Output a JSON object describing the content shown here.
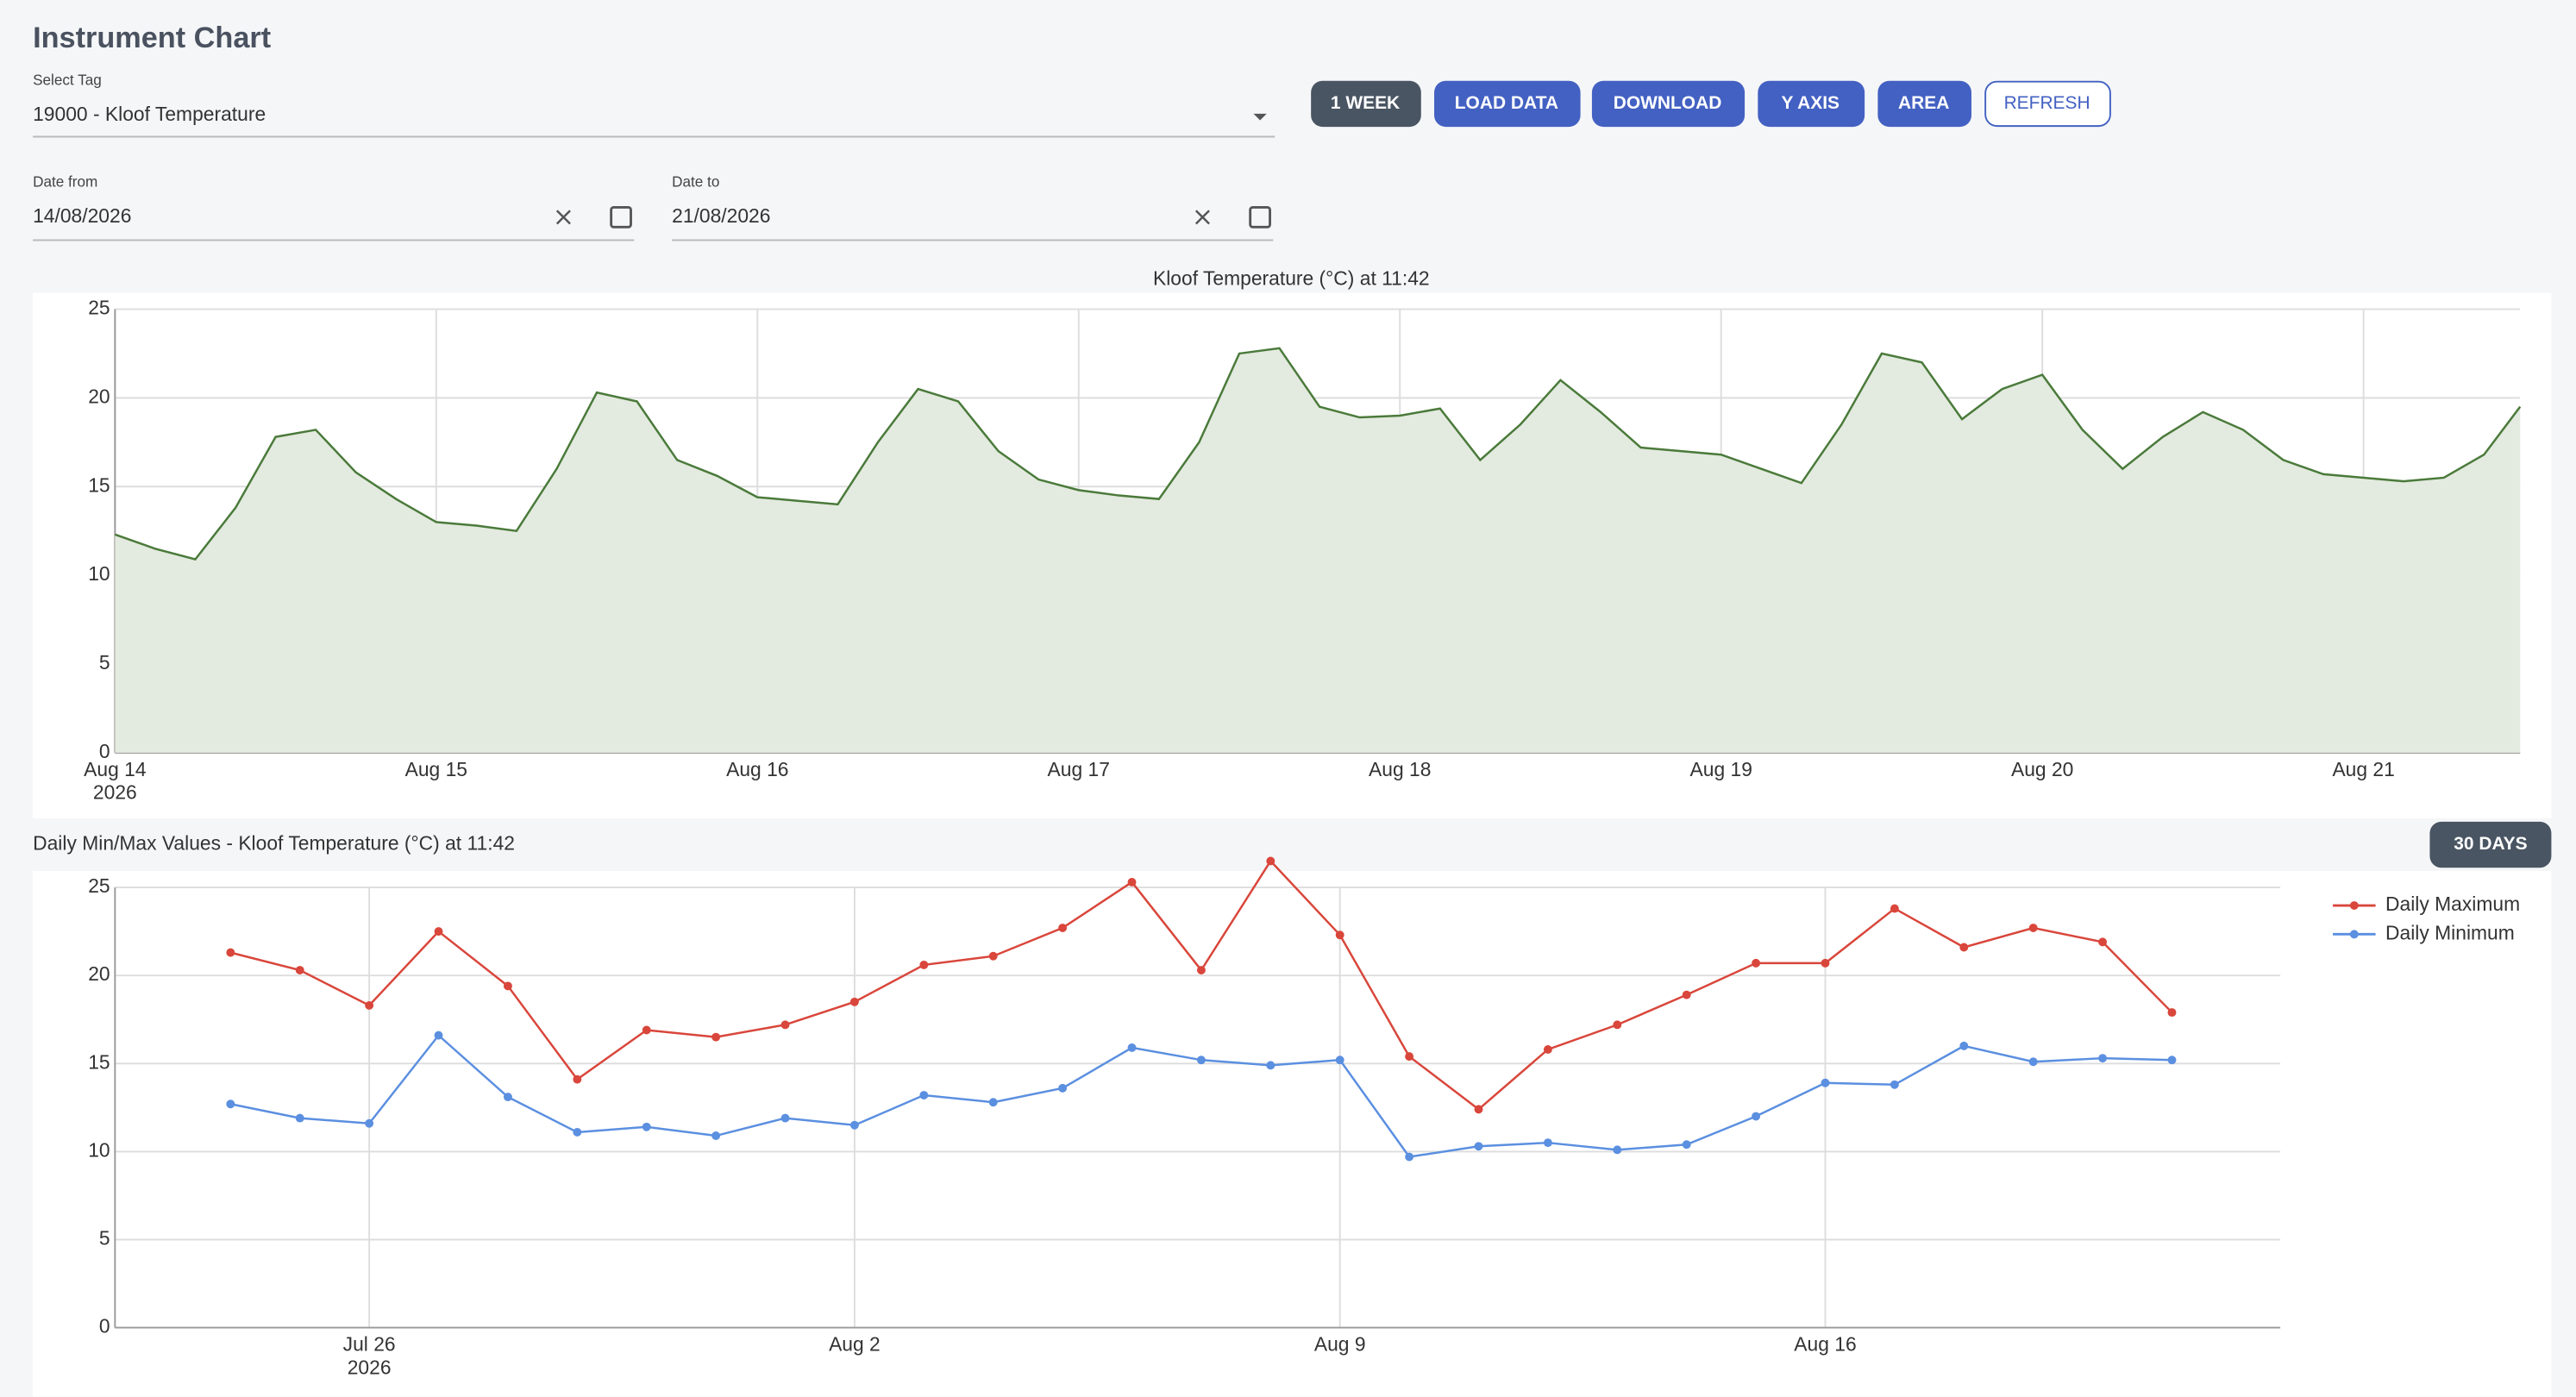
{
  "header": {
    "title": "Instrument Chart"
  },
  "form": {
    "tag": {
      "label": "Select Tag",
      "value": "19000 - Kloof Temperature"
    },
    "date_from": {
      "label": "Date from",
      "value": "14/08/2026"
    },
    "date_to": {
      "label": "Date to",
      "value": "21/08/2026"
    }
  },
  "buttons": [
    "1 WEEK",
    "LOAD DATA",
    "DOWNLOAD",
    "Y AXIS",
    "AREA",
    "REFRESH"
  ],
  "range_button": "30 DAYS",
  "chart_data": [
    {
      "type": "area",
      "title": "Kloof Temperature (°C) at 11:42",
      "color": "#4a7a3a",
      "fill": "#e3eadf",
      "x": [
        "2026-08-14T00:00",
        "2026-08-14T03:00",
        "2026-08-14T06:00",
        "2026-08-14T09:00",
        "2026-08-14T12:00",
        "2026-08-14T15:00",
        "2026-08-14T18:00",
        "2026-08-14T21:00",
        "2026-08-15T00:00",
        "2026-08-15T03:00",
        "2026-08-15T06:00",
        "2026-08-15T09:00",
        "2026-08-15T12:00",
        "2026-08-15T15:00",
        "2026-08-15T18:00",
        "2026-08-15T21:00",
        "2026-08-16T00:00",
        "2026-08-16T03:00",
        "2026-08-16T06:00",
        "2026-08-16T09:00",
        "2026-08-16T12:00",
        "2026-08-16T15:00",
        "2026-08-16T18:00",
        "2026-08-16T21:00",
        "2026-08-17T00:00",
        "2026-08-17T03:00",
        "2026-08-17T06:00",
        "2026-08-17T09:00",
        "2026-08-17T12:00",
        "2026-08-17T15:00",
        "2026-08-17T18:00",
        "2026-08-17T21:00",
        "2026-08-18T00:00",
        "2026-08-18T03:00",
        "2026-08-18T06:00",
        "2026-08-18T09:00",
        "2026-08-18T12:00",
        "2026-08-18T15:00",
        "2026-08-18T18:00",
        "2026-08-18T21:00",
        "2026-08-19T00:00",
        "2026-08-19T03:00",
        "2026-08-19T06:00",
        "2026-08-19T09:00",
        "2026-08-19T12:00",
        "2026-08-19T15:00",
        "2026-08-19T18:00",
        "2026-08-19T21:00",
        "2026-08-20T00:00",
        "2026-08-20T03:00",
        "2026-08-20T06:00",
        "2026-08-20T09:00",
        "2026-08-20T12:00",
        "2026-08-20T15:00",
        "2026-08-20T18:00",
        "2026-08-20T21:00",
        "2026-08-21T00:00",
        "2026-08-21T03:00",
        "2026-08-21T06:00",
        "2026-08-21T09:00",
        "2026-08-21T11:42"
      ],
      "values": [
        12.3,
        11.5,
        10.9,
        13.8,
        17.8,
        18.2,
        15.8,
        14.3,
        13.0,
        12.8,
        12.5,
        16.0,
        20.3,
        19.8,
        16.5,
        15.6,
        14.4,
        14.2,
        14.0,
        17.5,
        20.5,
        19.8,
        17.0,
        15.4,
        14.8,
        14.5,
        14.3,
        17.5,
        22.5,
        22.8,
        19.5,
        18.9,
        19.0,
        19.4,
        16.5,
        18.5,
        21.0,
        19.2,
        17.2,
        17.0,
        16.8,
        16.0,
        15.2,
        18.5,
        22.5,
        22.0,
        18.8,
        20.5,
        21.3,
        18.2,
        16.0,
        17.8,
        19.2,
        18.2,
        16.5,
        15.7,
        15.5,
        15.3,
        15.5,
        16.8,
        19.5
      ],
      "xlim": [
        "2026-08-14T00:00",
        "2026-08-21T11:42"
      ],
      "xticks": [
        {
          "value": "2026-08-14",
          "label": "Aug 14"
        },
        {
          "value": "2026-08-15",
          "label": "Aug 15"
        },
        {
          "value": "2026-08-16",
          "label": "Aug 16"
        },
        {
          "value": "2026-08-17",
          "label": "Aug 17"
        },
        {
          "value": "2026-08-18",
          "label": "Aug 18"
        },
        {
          "value": "2026-08-19",
          "label": "Aug 19"
        },
        {
          "value": "2026-08-20",
          "label": "Aug 20"
        },
        {
          "value": "2026-08-21",
          "label": "Aug 21"
        }
      ],
      "x_year": "2026",
      "ylim": [
        0,
        25
      ],
      "yticks": [
        0,
        5,
        10,
        15,
        20,
        25
      ],
      "grid": true
    },
    {
      "type": "line",
      "title": "Daily Min/Max Values - Kloof Temperature (°C) at 11:42",
      "x": [
        "2026-07-24",
        "2026-07-25",
        "2026-07-26",
        "2026-07-27",
        "2026-07-28",
        "2026-07-29",
        "2026-07-30",
        "2026-07-31",
        "2026-08-01",
        "2026-08-02",
        "2026-08-03",
        "2026-08-04",
        "2026-08-05",
        "2026-08-06",
        "2026-08-07",
        "2026-08-08",
        "2026-08-09",
        "2026-08-10",
        "2026-08-11",
        "2026-08-12",
        "2026-08-13",
        "2026-08-14",
        "2026-08-15",
        "2026-08-16",
        "2026-08-17",
        "2026-08-18",
        "2026-08-19",
        "2026-08-20",
        "2026-08-21"
      ],
      "series": [
        {
          "name": "Daily Maximum",
          "color": "#d9463b",
          "values": [
            21.3,
            20.3,
            18.3,
            22.5,
            19.4,
            14.1,
            16.9,
            16.5,
            17.2,
            18.5,
            20.6,
            21.1,
            22.7,
            25.3,
            20.3,
            26.5,
            22.3,
            15.4,
            12.4,
            15.8,
            17.2,
            18.9,
            20.7,
            20.7,
            23.8,
            21.6,
            22.7,
            21.9,
            17.9
          ]
        },
        {
          "name": "Daily Minimum",
          "color": "#5b8fe0",
          "values": [
            12.7,
            11.9,
            11.6,
            16.6,
            13.1,
            11.1,
            11.4,
            10.9,
            11.9,
            11.5,
            13.2,
            12.8,
            13.6,
            15.9,
            15.2,
            14.9,
            15.2,
            9.7,
            10.3,
            10.5,
            10.1,
            10.4,
            12.0,
            13.9,
            13.8,
            16.0,
            15.1,
            15.3,
            15.2
          ]
        }
      ],
      "xlim": [
        "2026-07-22T08:00",
        "2026-08-22T13:30"
      ],
      "xticks": [
        {
          "value": "2026-07-26",
          "label": "Jul 26"
        },
        {
          "value": "2026-08-02",
          "label": "Aug 2"
        },
        {
          "value": "2026-08-09",
          "label": "Aug 9"
        },
        {
          "value": "2026-08-16",
          "label": "Aug 16"
        }
      ],
      "x_year": "2026",
      "ylim": [
        0,
        25
      ],
      "yticks": [
        0,
        5,
        10,
        15,
        20,
        25
      ],
      "grid": true,
      "legend": "top-right"
    }
  ]
}
